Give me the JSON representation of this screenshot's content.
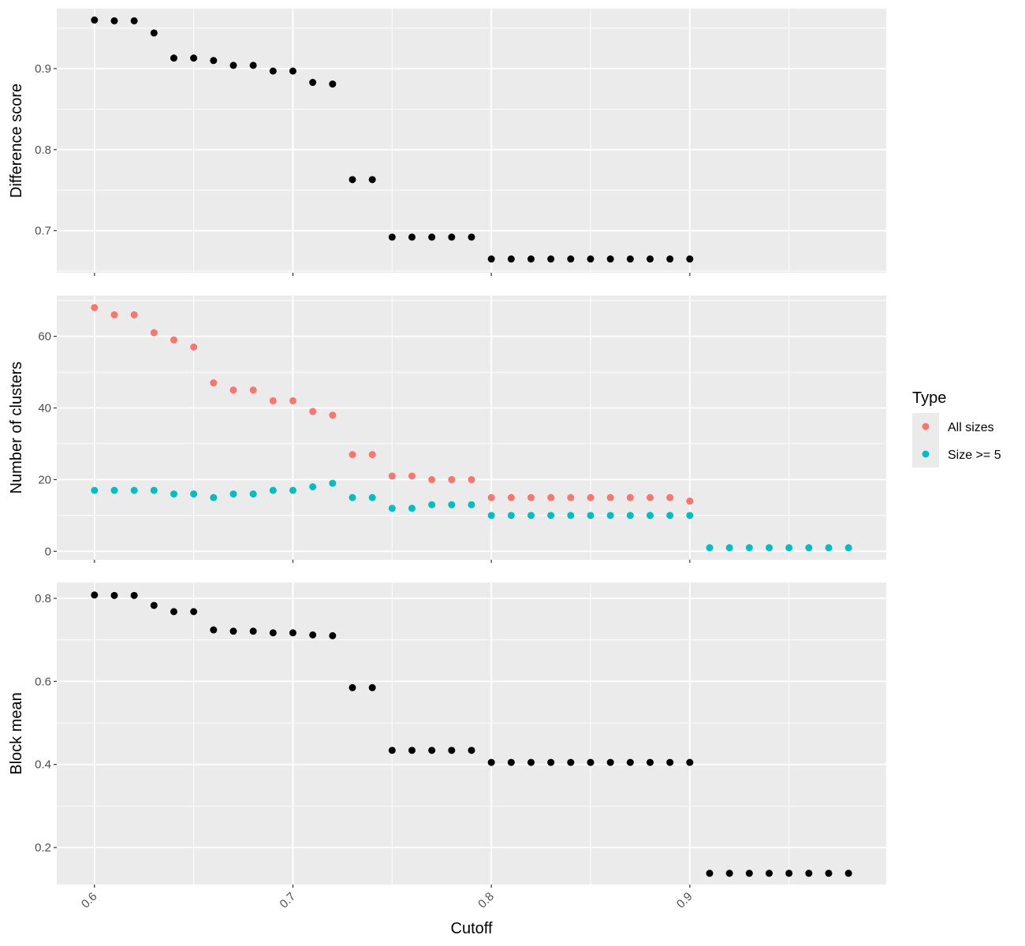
{
  "chart_data": [
    {
      "type": "scatter",
      "panel": "top",
      "ylabel": "Difference score",
      "ylim": [
        0.648,
        0.974
      ],
      "y_ticks": [
        "0.7",
        "0.8",
        "0.9"
      ],
      "grid": true,
      "series": [
        {
          "color": "#000000",
          "x": [
            0.6,
            0.61,
            0.62,
            0.63,
            0.64,
            0.65,
            0.66,
            0.67,
            0.68,
            0.69,
            0.7,
            0.71,
            0.72,
            0.73,
            0.74,
            0.75,
            0.76,
            0.77,
            0.78,
            0.79,
            0.8,
            0.81,
            0.82,
            0.83,
            0.84,
            0.85,
            0.86,
            0.87,
            0.88,
            0.89,
            0.9
          ],
          "y": [
            0.96,
            0.959,
            0.959,
            0.944,
            0.913,
            0.913,
            0.91,
            0.904,
            0.904,
            0.897,
            0.897,
            0.883,
            0.881,
            0.763,
            0.763,
            0.692,
            0.692,
            0.692,
            0.692,
            0.692,
            0.665,
            0.665,
            0.665,
            0.665,
            0.665,
            0.665,
            0.665,
            0.665,
            0.665,
            0.665,
            0.665
          ]
        }
      ]
    },
    {
      "type": "scatter",
      "panel": "middle",
      "ylabel": "Number of clusters",
      "ylim": [
        -2.35,
        71.35
      ],
      "y_ticks": [
        "0",
        "20",
        "40",
        "60"
      ],
      "grid": true,
      "legend": {
        "title": "Type",
        "position": "right"
      },
      "series": [
        {
          "name": "All sizes",
          "color": "#F8766D",
          "x": [
            0.6,
            0.61,
            0.62,
            0.63,
            0.64,
            0.65,
            0.66,
            0.67,
            0.68,
            0.69,
            0.7,
            0.71,
            0.72,
            0.73,
            0.74,
            0.75,
            0.76,
            0.77,
            0.78,
            0.79,
            0.8,
            0.81,
            0.82,
            0.83,
            0.84,
            0.85,
            0.86,
            0.87,
            0.88,
            0.89,
            0.9
          ],
          "y": [
            68,
            66,
            66,
            61,
            59,
            57,
            47,
            45,
            45,
            42,
            42,
            39,
            38,
            27,
            27,
            21,
            21,
            20,
            20,
            20,
            15,
            15,
            15,
            15,
            15,
            15,
            15,
            15,
            15,
            15,
            14
          ]
        },
        {
          "name": "Size >= 5",
          "color": "#00BFC4",
          "x": [
            0.6,
            0.61,
            0.62,
            0.63,
            0.64,
            0.65,
            0.66,
            0.67,
            0.68,
            0.69,
            0.7,
            0.71,
            0.72,
            0.73,
            0.74,
            0.75,
            0.76,
            0.77,
            0.78,
            0.79,
            0.8,
            0.81,
            0.82,
            0.83,
            0.84,
            0.85,
            0.86,
            0.87,
            0.88,
            0.89,
            0.9,
            0.91,
            0.92,
            0.93,
            0.94,
            0.95,
            0.96,
            0.97,
            0.98
          ],
          "y": [
            17,
            17,
            17,
            17,
            16,
            16,
            15,
            16,
            16,
            17,
            17,
            18,
            19,
            15,
            15,
            12,
            12,
            13,
            13,
            13,
            10,
            10,
            10,
            10,
            10,
            10,
            10,
            10,
            10,
            10,
            10,
            1,
            1,
            1,
            1,
            1,
            1,
            1,
            1
          ]
        }
      ]
    },
    {
      "type": "scatter",
      "panel": "bottom",
      "ylabel": "Block mean",
      "xlabel": "Cutoff",
      "ylim": [
        0.111,
        0.838
      ],
      "y_ticks": [
        "0.2",
        "0.4",
        "0.6",
        "0.8"
      ],
      "x_ticks": [
        "0.6",
        "0.7",
        "0.8",
        "0.9"
      ],
      "grid": true,
      "series": [
        {
          "color": "#000000",
          "x": [
            0.6,
            0.61,
            0.62,
            0.63,
            0.64,
            0.65,
            0.66,
            0.67,
            0.68,
            0.69,
            0.7,
            0.71,
            0.72,
            0.73,
            0.74,
            0.75,
            0.76,
            0.77,
            0.78,
            0.79,
            0.8,
            0.81,
            0.82,
            0.83,
            0.84,
            0.85,
            0.86,
            0.87,
            0.88,
            0.89,
            0.9,
            0.91,
            0.92,
            0.93,
            0.94,
            0.95,
            0.96,
            0.97,
            0.98
          ],
          "y": [
            0.808,
            0.807,
            0.807,
            0.783,
            0.768,
            0.768,
            0.724,
            0.721,
            0.721,
            0.717,
            0.717,
            0.712,
            0.71,
            0.585,
            0.585,
            0.434,
            0.434,
            0.434,
            0.434,
            0.434,
            0.405,
            0.405,
            0.405,
            0.405,
            0.405,
            0.405,
            0.405,
            0.405,
            0.405,
            0.405,
            0.405,
            0.138,
            0.138,
            0.138,
            0.138,
            0.138,
            0.138,
            0.138,
            0.138
          ]
        }
      ]
    }
  ],
  "x_axis": {
    "xlim": [
      0.581,
      0.999
    ]
  }
}
